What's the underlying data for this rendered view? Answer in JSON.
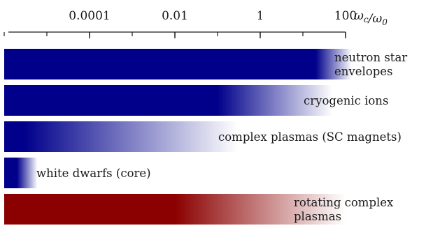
{
  "chart_data": {
    "type": "bar",
    "orientation": "horizontal",
    "scale": "log",
    "xlabel": "ωc/ω0",
    "xticks": [
      {
        "value": 0.0001,
        "label": "0.0001"
      },
      {
        "value": 0.01,
        "label": "0.01"
      },
      {
        "value": 1,
        "label": "1"
      },
      {
        "value": 100,
        "label": "100"
      }
    ],
    "xlim": [
      1e-06,
      100
    ],
    "bars": [
      {
        "label": [
          "neutron star",
          "envelopes"
        ],
        "solid_to": 20,
        "fade_to": 140,
        "color": "#00008b"
      },
      {
        "label": [
          "cryogenic ions"
        ],
        "solid_to": 0.1,
        "fade_to": 50,
        "color": "#00008b"
      },
      {
        "label": [
          "complex plasmas (SC magnets)"
        ],
        "solid_to": 3e-06,
        "fade_to": 0.3,
        "color": "#00008b"
      },
      {
        "label": [
          "white dwarfs (core)"
        ],
        "solid_to": 2e-06,
        "fade_to": 6e-06,
        "color": "#00008b"
      },
      {
        "label": [
          "rotating complex",
          "plasmas"
        ],
        "solid_to": 0.01,
        "fade_to": 100,
        "color": "#8b0000"
      }
    ]
  }
}
